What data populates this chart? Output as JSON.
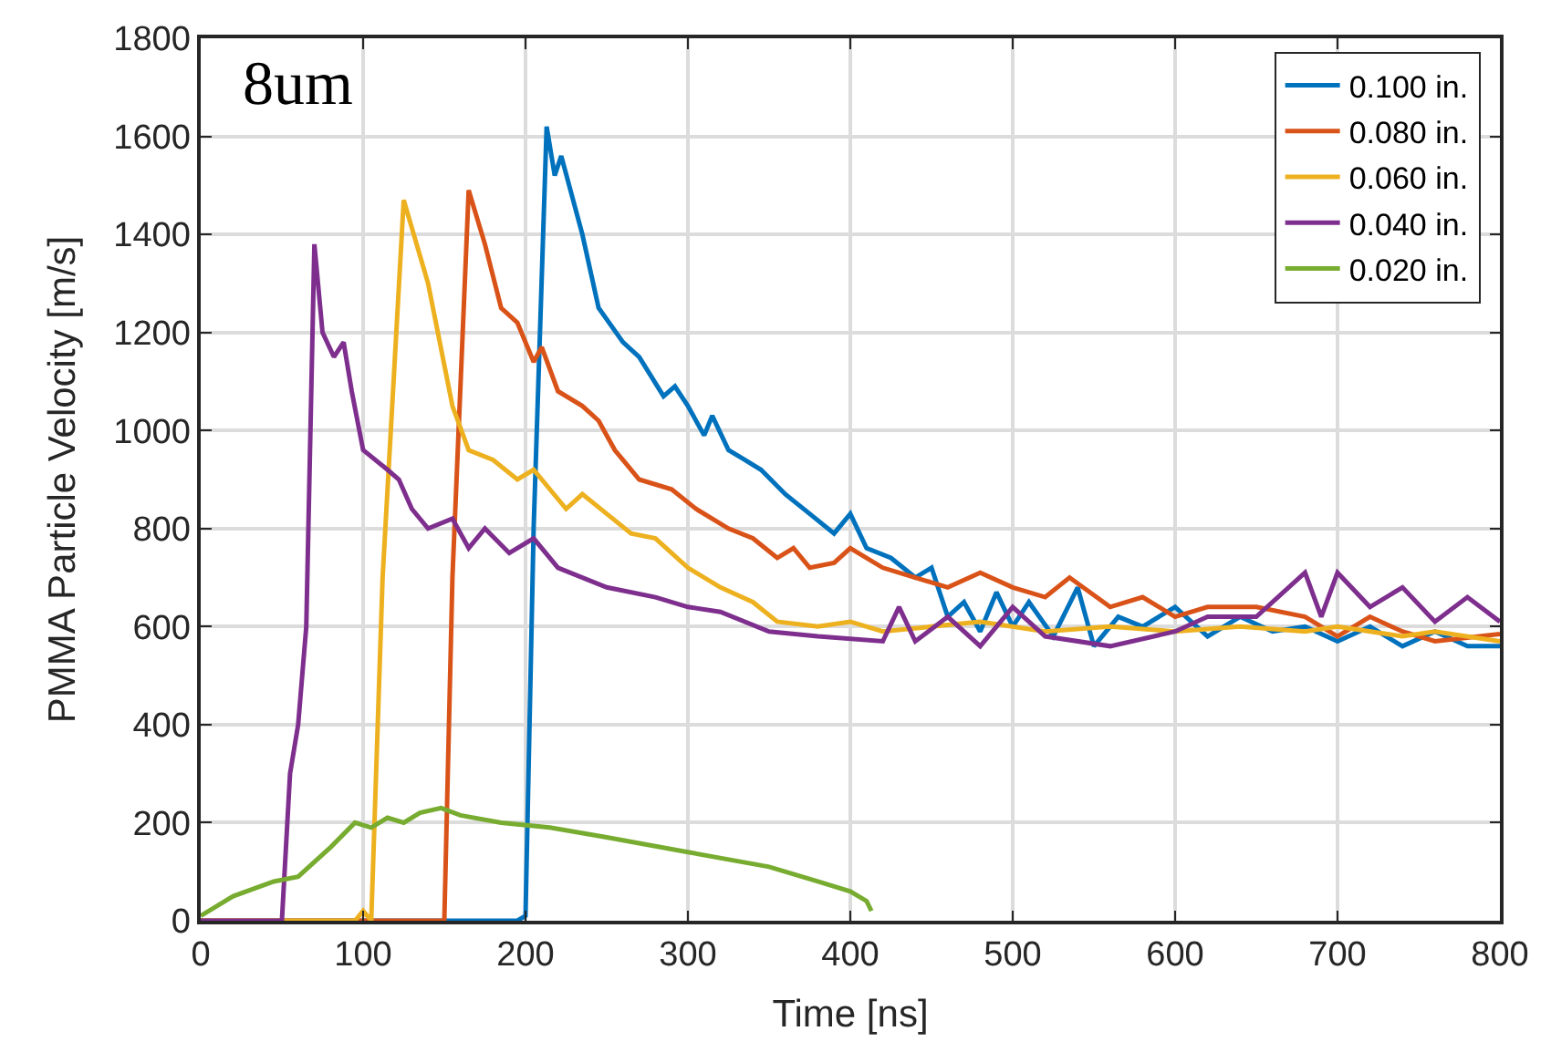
{
  "chart_data": {
    "type": "line",
    "xlabel": "Time [ns]",
    "ylabel": "PMMA Particle Velocity [m/s]",
    "annotations": [
      "8um"
    ],
    "xlim": [
      0,
      800
    ],
    "xticks": [
      0,
      100,
      200,
      300,
      400,
      500,
      600,
      700,
      800
    ],
    "ylim": [
      0,
      1800
    ],
    "yticks": [
      0,
      200,
      400,
      600,
      800,
      1000,
      1200,
      1400,
      1600,
      1800
    ],
    "grid": true,
    "legend": "top right",
    "marker": "none",
    "line_style": "solid",
    "series": [
      {
        "name": "0.100 in.",
        "color": "#0072bd",
        "x": [
          0,
          100,
          195,
          200,
          205,
          213,
          218,
          222,
          235,
          245,
          260,
          270,
          285,
          292,
          300,
          310,
          315,
          325,
          335,
          345,
          360,
          375,
          390,
          400,
          410,
          425,
          440,
          450,
          460,
          470,
          480,
          490,
          500,
          510,
          525,
          540,
          550,
          565,
          580,
          600,
          620,
          640,
          660,
          680,
          700,
          720,
          740,
          760,
          780,
          800
        ],
        "values": [
          0,
          0,
          0,
          10,
          800,
          1620,
          1520,
          1560,
          1400,
          1250,
          1180,
          1150,
          1070,
          1090,
          1050,
          990,
          1030,
          960,
          940,
          920,
          870,
          830,
          790,
          830,
          760,
          740,
          700,
          720,
          620,
          650,
          590,
          670,
          600,
          650,
          580,
          680,
          560,
          620,
          600,
          640,
          580,
          620,
          590,
          600,
          570,
          600,
          560,
          590,
          560,
          560
        ]
      },
      {
        "name": "0.080 in.",
        "color": "#d95319",
        "x": [
          0,
          100,
          150,
          155,
          165,
          175,
          185,
          195,
          205,
          210,
          220,
          235,
          245,
          255,
          270,
          290,
          305,
          325,
          340,
          355,
          365,
          375,
          390,
          400,
          420,
          440,
          460,
          480,
          500,
          520,
          535,
          560,
          580,
          600,
          620,
          650,
          680,
          700,
          720,
          740,
          760,
          800
        ],
        "values": [
          0,
          0,
          0,
          700,
          1490,
          1380,
          1250,
          1220,
          1140,
          1170,
          1080,
          1050,
          1020,
          960,
          900,
          880,
          840,
          800,
          780,
          740,
          760,
          720,
          730,
          760,
          720,
          700,
          680,
          710,
          680,
          660,
          700,
          640,
          660,
          620,
          640,
          640,
          620,
          580,
          620,
          590,
          570,
          585
        ]
      },
      {
        "name": "0.060 in.",
        "color": "#edb120",
        "x": [
          0,
          95,
          100,
          105,
          112,
          125,
          140,
          155,
          165,
          180,
          195,
          205,
          215,
          225,
          235,
          250,
          265,
          280,
          300,
          320,
          340,
          355,
          380,
          400,
          420,
          450,
          480,
          520,
          560,
          600,
          640,
          680,
          700,
          740,
          760,
          800
        ],
        "values": [
          0,
          0,
          20,
          0,
          700,
          1470,
          1300,
          1050,
          960,
          940,
          900,
          920,
          880,
          840,
          870,
          830,
          790,
          780,
          720,
          680,
          650,
          610,
          600,
          610,
          590,
          600,
          610,
          590,
          600,
          590,
          600,
          590,
          600,
          580,
          590,
          570
        ]
      },
      {
        "name": "0.040 in.",
        "color": "#7e2f8e",
        "x": [
          0,
          50,
          55,
          60,
          65,
          70,
          75,
          82,
          88,
          93,
          100,
          115,
          122,
          130,
          140,
          155,
          165,
          175,
          190,
          205,
          220,
          250,
          280,
          300,
          320,
          350,
          380,
          420,
          430,
          440,
          460,
          480,
          500,
          520,
          560,
          600,
          620,
          650,
          680,
          690,
          700,
          720,
          740,
          760,
          780,
          800
        ],
        "values": [
          0,
          0,
          300,
          400,
          600,
          1380,
          1200,
          1150,
          1180,
          1080,
          960,
          920,
          900,
          840,
          800,
          820,
          760,
          800,
          750,
          780,
          720,
          680,
          660,
          640,
          630,
          590,
          580,
          570,
          640,
          570,
          620,
          560,
          640,
          580,
          560,
          590,
          620,
          620,
          710,
          620,
          710,
          640,
          680,
          610,
          660,
          610
        ]
      },
      {
        "name": "0.020 in.",
        "color": "#77ac30",
        "x": [
          0,
          20,
          45,
          60,
          80,
          95,
          105,
          115,
          125,
          135,
          148,
          160,
          185,
          215,
          250,
          300,
          350,
          380,
          400,
          410,
          413
        ],
        "values": [
          10,
          50,
          80,
          90,
          150,
          200,
          190,
          210,
          200,
          220,
          230,
          215,
          200,
          190,
          170,
          140,
          110,
          80,
          60,
          40,
          20
        ]
      }
    ]
  }
}
